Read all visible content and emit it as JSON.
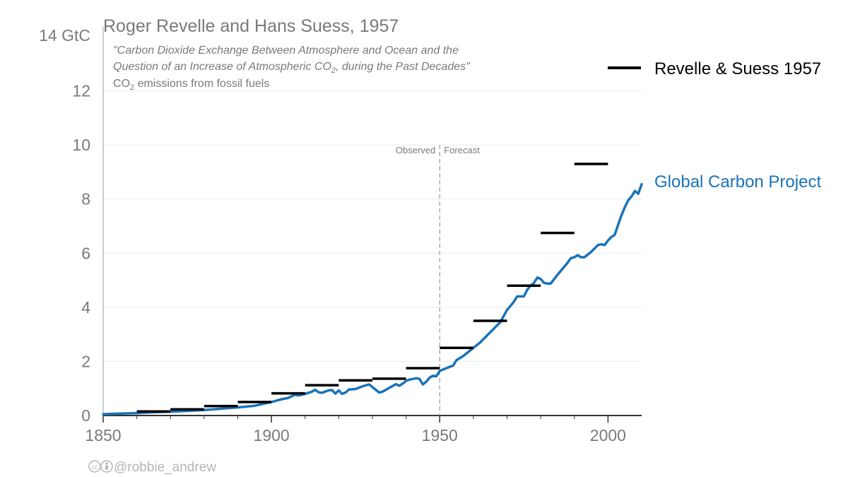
{
  "chart_data": {
    "type": "line",
    "title": "Roger Revelle and Hans Suess, 1957",
    "citation_line1": "\"Carbon Dioxide Exchange Between Atmosphere and Ocean and the",
    "citation_line2_pre": "Question of an Increase of Atmospheric CO",
    "citation_line2_sub": "2",
    "citation_line2_post": ", during the Past Decades\"",
    "subtitle_pre": "CO",
    "subtitle_sub": "2",
    "subtitle_post": " emissions from fossil fuels",
    "ylabel_top": "14 GtC",
    "y_ticks": [
      "0",
      "2",
      "4",
      "6",
      "8",
      "10",
      "12"
    ],
    "x_ticks": [
      "1850",
      "1900",
      "1950",
      "2000"
    ],
    "xlim": [
      1850,
      2010
    ],
    "ylim": [
      0,
      14
    ],
    "observed_label": "Observed",
    "forecast_label": "Forecast",
    "divider_year": 1950,
    "credit": "@robbie_andrew",
    "series": [
      {
        "name": "Revelle & Suess 1957",
        "color": "#000000",
        "style": "step",
        "segments": [
          {
            "start": 1860,
            "end": 1870,
            "value": 0.15
          },
          {
            "start": 1870,
            "end": 1880,
            "value": 0.23
          },
          {
            "start": 1880,
            "end": 1890,
            "value": 0.35
          },
          {
            "start": 1890,
            "end": 1900,
            "value": 0.5
          },
          {
            "start": 1900,
            "end": 1910,
            "value": 0.82
          },
          {
            "start": 1910,
            "end": 1920,
            "value": 1.12
          },
          {
            "start": 1920,
            "end": 1930,
            "value": 1.3
          },
          {
            "start": 1930,
            "end": 1940,
            "value": 1.36
          },
          {
            "start": 1940,
            "end": 1950,
            "value": 1.75
          },
          {
            "start": 1950,
            "end": 1960,
            "value": 2.5
          },
          {
            "start": 1960,
            "end": 1970,
            "value": 3.5
          },
          {
            "start": 1970,
            "end": 1980,
            "value": 4.8
          },
          {
            "start": 1980,
            "end": 1990,
            "value": 6.75
          },
          {
            "start": 1990,
            "end": 2000,
            "value": 9.3
          }
        ]
      },
      {
        "name": "Global Carbon Project",
        "color": "#1a73b8",
        "style": "line",
        "x": [
          1850,
          1855,
          1860,
          1865,
          1870,
          1875,
          1880,
          1885,
          1890,
          1895,
          1900,
          1903,
          1905,
          1907,
          1908,
          1910,
          1912,
          1913,
          1914,
          1915,
          1917,
          1918,
          1919,
          1920,
          1921,
          1922,
          1923,
          1925,
          1927,
          1929,
          1930,
          1931,
          1932,
          1933,
          1935,
          1937,
          1938,
          1939,
          1940,
          1941,
          1942,
          1943,
          1944,
          1945,
          1946,
          1947,
          1948,
          1949,
          1950,
          1952,
          1954,
          1955,
          1957,
          1958,
          1960,
          1962,
          1964,
          1966,
          1968,
          1970,
          1972,
          1973,
          1974,
          1975,
          1976,
          1977,
          1978,
          1979,
          1980,
          1981,
          1982,
          1983,
          1985,
          1987,
          1988,
          1989,
          1990,
          1991,
          1992,
          1993,
          1995,
          1997,
          1998,
          1999,
          2000,
          2001,
          2002,
          2003,
          2004,
          2005,
          2006,
          2007,
          2008,
          2009,
          2010
        ],
        "values": [
          0.05,
          0.07,
          0.09,
          0.12,
          0.14,
          0.17,
          0.2,
          0.25,
          0.3,
          0.36,
          0.5,
          0.6,
          0.65,
          0.77,
          0.74,
          0.8,
          0.88,
          0.95,
          0.86,
          0.84,
          0.93,
          0.94,
          0.81,
          0.93,
          0.8,
          0.85,
          0.96,
          0.98,
          1.08,
          1.15,
          1.05,
          0.95,
          0.85,
          0.88,
          1.02,
          1.16,
          1.1,
          1.18,
          1.28,
          1.33,
          1.35,
          1.38,
          1.35,
          1.15,
          1.25,
          1.4,
          1.47,
          1.45,
          1.65,
          1.75,
          1.85,
          2.05,
          2.2,
          2.3,
          2.5,
          2.7,
          2.95,
          3.2,
          3.45,
          3.9,
          4.2,
          4.4,
          4.4,
          4.4,
          4.65,
          4.8,
          4.9,
          5.1,
          5.05,
          4.9,
          4.88,
          4.88,
          5.2,
          5.5,
          5.65,
          5.82,
          5.85,
          5.93,
          5.85,
          5.85,
          6.05,
          6.3,
          6.33,
          6.3,
          6.47,
          6.6,
          6.68,
          7.05,
          7.4,
          7.7,
          7.95,
          8.1,
          8.3,
          8.2,
          8.55
        ]
      }
    ]
  }
}
